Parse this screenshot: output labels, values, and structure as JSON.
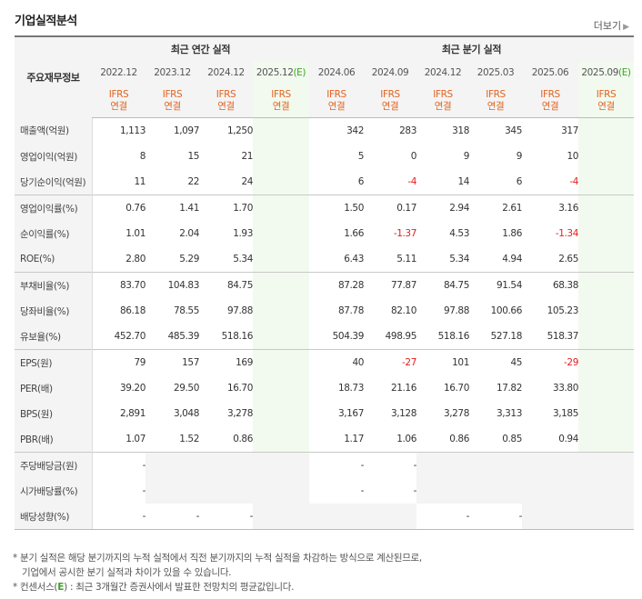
{
  "title": "기업실적분석",
  "more_label": "더보기",
  "header": {
    "row_label": "주요재무정보",
    "annual_label": "최근 연간 실적",
    "quarter_label": "최근 분기 실적",
    "basis_top": "IFRS",
    "basis_bottom": "연결"
  },
  "annual_periods": [
    {
      "label": "2022.12",
      "estimate": false
    },
    {
      "label": "2023.12",
      "estimate": false
    },
    {
      "label": "2024.12",
      "estimate": false
    },
    {
      "label": "2025.12",
      "estimate": true
    }
  ],
  "quarter_periods": [
    {
      "label": "2024.06",
      "estimate": false
    },
    {
      "label": "2024.09",
      "estimate": false
    },
    {
      "label": "2024.12",
      "estimate": false
    },
    {
      "label": "2025.03",
      "estimate": false
    },
    {
      "label": "2025.06",
      "estimate": false
    },
    {
      "label": "2025.09",
      "estimate": true
    }
  ],
  "estimate_mark": "(E)",
  "rows": [
    {
      "label": "매출액(억원)",
      "annual": [
        "1,113",
        "1,097",
        "1,250",
        ""
      ],
      "quarter": [
        "342",
        "283",
        "318",
        "345",
        "317",
        ""
      ]
    },
    {
      "label": "영업이익(억원)",
      "annual": [
        "8",
        "15",
        "21",
        ""
      ],
      "quarter": [
        "5",
        "0",
        "9",
        "9",
        "10",
        ""
      ]
    },
    {
      "label": "당기순이익(억원)",
      "annual": [
        "11",
        "22",
        "24",
        ""
      ],
      "quarter": [
        "6",
        "-4",
        "14",
        "6",
        "-4",
        ""
      ]
    },
    {
      "label": "영업이익률(%)",
      "annual": [
        "0.76",
        "1.41",
        "1.70",
        ""
      ],
      "quarter": [
        "1.50",
        "0.17",
        "2.94",
        "2.61",
        "3.16",
        ""
      ]
    },
    {
      "label": "순이익률(%)",
      "annual": [
        "1.01",
        "2.04",
        "1.93",
        ""
      ],
      "quarter": [
        "1.66",
        "-1.37",
        "4.53",
        "1.86",
        "-1.34",
        ""
      ]
    },
    {
      "label": "ROE(%)",
      "annual": [
        "2.80",
        "5.29",
        "5.34",
        ""
      ],
      "quarter": [
        "6.43",
        "5.11",
        "5.34",
        "4.94",
        "2.65",
        ""
      ]
    },
    {
      "label": "부채비율(%)",
      "annual": [
        "83.70",
        "104.83",
        "84.75",
        ""
      ],
      "quarter": [
        "87.28",
        "77.87",
        "84.75",
        "91.54",
        "68.38",
        ""
      ]
    },
    {
      "label": "당좌비율(%)",
      "annual": [
        "86.18",
        "78.55",
        "97.88",
        ""
      ],
      "quarter": [
        "87.78",
        "82.10",
        "97.88",
        "100.66",
        "105.23",
        ""
      ]
    },
    {
      "label": "유보율(%)",
      "annual": [
        "452.70",
        "485.39",
        "518.16",
        ""
      ],
      "quarter": [
        "504.39",
        "498.95",
        "518.16",
        "527.18",
        "518.37",
        ""
      ]
    },
    {
      "label": "EPS(원)",
      "annual": [
        "79",
        "157",
        "169",
        ""
      ],
      "quarter": [
        "40",
        "-27",
        "101",
        "45",
        "-29",
        ""
      ]
    },
    {
      "label": "PER(배)",
      "annual": [
        "39.20",
        "29.50",
        "16.70",
        ""
      ],
      "quarter": [
        "18.73",
        "21.16",
        "16.70",
        "17.82",
        "33.80",
        ""
      ]
    },
    {
      "label": "BPS(원)",
      "annual": [
        "2,891",
        "3,048",
        "3,278",
        ""
      ],
      "quarter": [
        "3,167",
        "3,128",
        "3,278",
        "3,313",
        "3,185",
        ""
      ]
    },
    {
      "label": "PBR(배)",
      "annual": [
        "1.07",
        "1.52",
        "0.86",
        ""
      ],
      "quarter": [
        "1.17",
        "1.06",
        "0.86",
        "0.85",
        "0.94",
        ""
      ]
    },
    {
      "label": "주당배당금(원)",
      "annual": [
        "-",
        null,
        null,
        null
      ],
      "quarter": [
        "-",
        "-",
        null,
        null,
        null,
        null
      ]
    },
    {
      "label": "시가배당률(%)",
      "annual": [
        "-",
        null,
        null,
        null
      ],
      "quarter": [
        "-",
        "-",
        null,
        null,
        null,
        null
      ]
    },
    {
      "label": "배당성향(%)",
      "annual": [
        "-",
        "-",
        "-",
        null
      ],
      "quarter": [
        null,
        null,
        "-",
        "-",
        null,
        null
      ]
    }
  ],
  "notes": {
    "line1": "* 분기 실적은 해당 분기까지의 누적 실적에서 직전 분기까지의 누적 실적을 차감하는 방식으로 계산된므로,",
    "line2": "기업에서 공시한 분기 실적과 차이가 있을 수 있습니다.",
    "line3_prefix": "* 컨센서스(",
    "line3_e": "E",
    "line3_suffix": ") : 최근 3개월간 증권사에서 발표한 전망치의 평균값입니다."
  }
}
